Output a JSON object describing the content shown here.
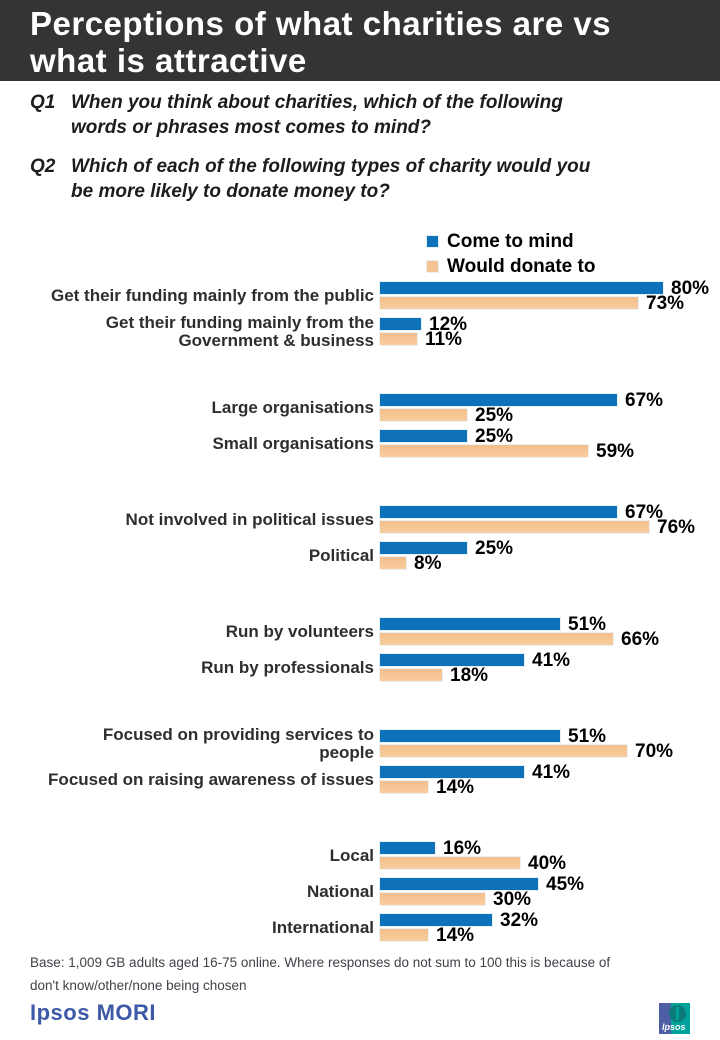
{
  "header": {
    "title_lines": [
      "Perceptions of what charities are vs",
      "what is attractive"
    ],
    "bg_color": "#343434"
  },
  "questions": [
    {
      "number": "Q1",
      "lines": [
        "When you think about charities, which of the following",
        "words or phrases most comes to mind?"
      ]
    },
    {
      "number": "Q2",
      "lines": [
        "Which of each of the following types of charity would you",
        "be more likely to donate money to?"
      ]
    }
  ],
  "chart_data": {
    "type": "bar",
    "orientation": "horizontal",
    "unit": "%",
    "xlim": [
      0,
      100
    ],
    "grid": false,
    "legend_position": "top-center",
    "series": [
      {
        "name": "Come to mind",
        "color": "#0F72B8"
      },
      {
        "name": "Would donate to",
        "color": "#F6C494"
      }
    ],
    "groups": [
      {
        "rows": [
          {
            "label_lines": [
              "Get their funding mainly from the public"
            ],
            "values": [
              80,
              73
            ]
          },
          {
            "label_lines": [
              "Get their funding mainly from the",
              "Government & business"
            ],
            "values": [
              12,
              11
            ]
          }
        ]
      },
      {
        "rows": [
          {
            "label_lines": [
              "Large organisations"
            ],
            "values": [
              67,
              25
            ]
          },
          {
            "label_lines": [
              "Small organisations"
            ],
            "values": [
              25,
              59
            ]
          }
        ]
      },
      {
        "rows": [
          {
            "label_lines": [
              "Not involved in political issues"
            ],
            "values": [
              67,
              76
            ]
          },
          {
            "label_lines": [
              "Political"
            ],
            "values": [
              25,
              8
            ]
          }
        ]
      },
      {
        "rows": [
          {
            "label_lines": [
              "Run by volunteers"
            ],
            "values": [
              51,
              66
            ]
          },
          {
            "label_lines": [
              "Run by professionals"
            ],
            "values": [
              41,
              18
            ]
          }
        ]
      },
      {
        "rows": [
          {
            "label_lines": [
              "Focused on providing services to",
              "people"
            ],
            "values": [
              51,
              70
            ]
          },
          {
            "label_lines": [
              "Focused on raising awareness of issues"
            ],
            "values": [
              41,
              14
            ]
          }
        ]
      },
      {
        "rows": [
          {
            "label_lines": [
              "Local"
            ],
            "values": [
              16,
              40
            ]
          },
          {
            "label_lines": [
              "National"
            ],
            "values": [
              45,
              30
            ]
          },
          {
            "label_lines": [
              "International"
            ],
            "values": [
              32,
              14
            ]
          }
        ]
      }
    ]
  },
  "footer": {
    "base_note_lines": [
      "Base: 1,009 GB adults aged 16-75 online. Where responses do not sum to 100 this is because of",
      "don't know/other/none being chosen"
    ],
    "brand": "Ipsos MORI",
    "logo_text": "Ipsos"
  }
}
